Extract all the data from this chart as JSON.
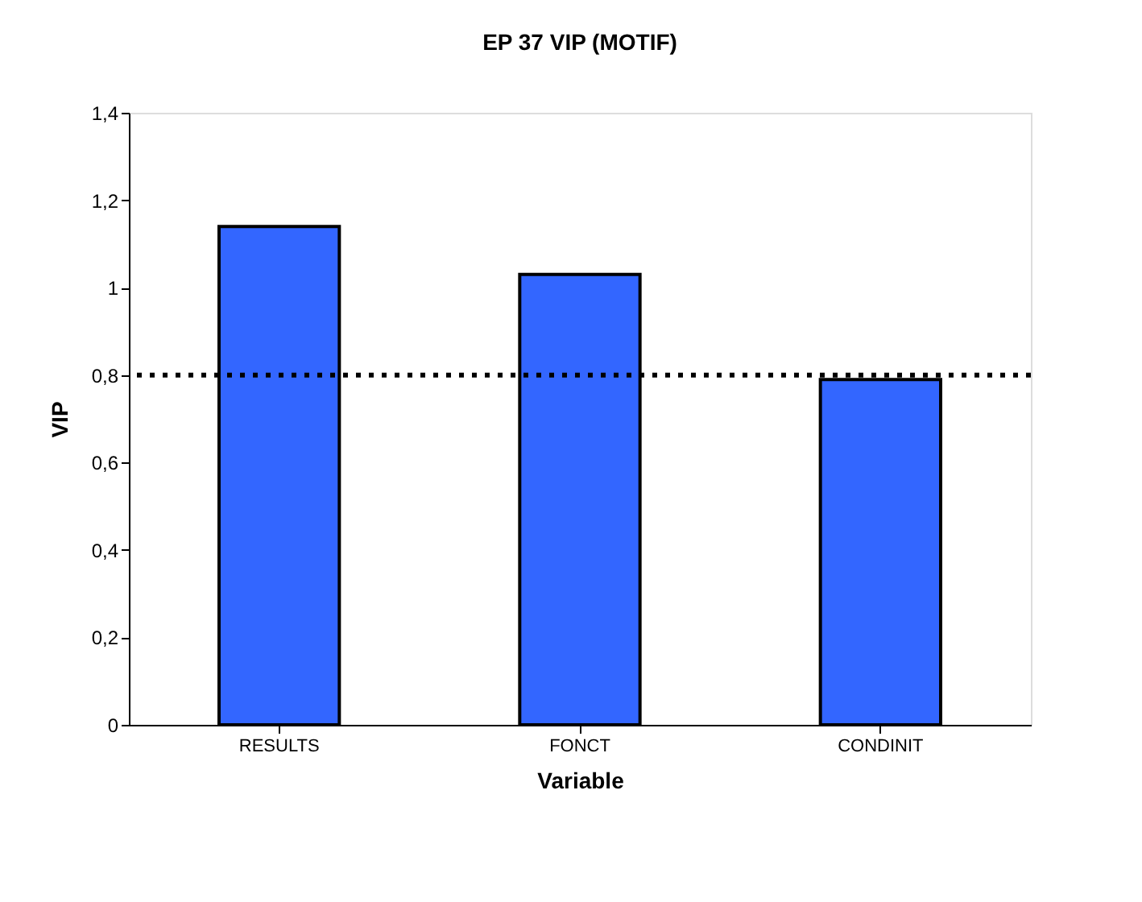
{
  "chart_data": {
    "type": "bar",
    "title": "EP 37          VIP (MOTIF)",
    "xlabel": "Variable",
    "ylabel": "VIP",
    "categories": [
      "RESULTS",
      "FONCT",
      "CONDINIT"
    ],
    "values": [
      1.14,
      1.03,
      0.79
    ],
    "color": "#3366ff",
    "ylim": [
      0,
      1.4
    ],
    "yticks": [
      0,
      {
        "value": 0.2,
        "label": "0,2"
      },
      {
        "value": 0.4,
        "label": "0,4"
      },
      {
        "value": 0.6,
        "label": "0,6"
      },
      {
        "value": 0.8,
        "label": "0,8"
      },
      1,
      {
        "value": 1.2,
        "label": "1,2"
      },
      {
        "value": 1.4,
        "label": "1,4"
      }
    ],
    "ref_lines": [
      {
        "axis": "y",
        "value": 0.8,
        "color": "#000000",
        "line_style": "dotted"
      }
    ]
  }
}
